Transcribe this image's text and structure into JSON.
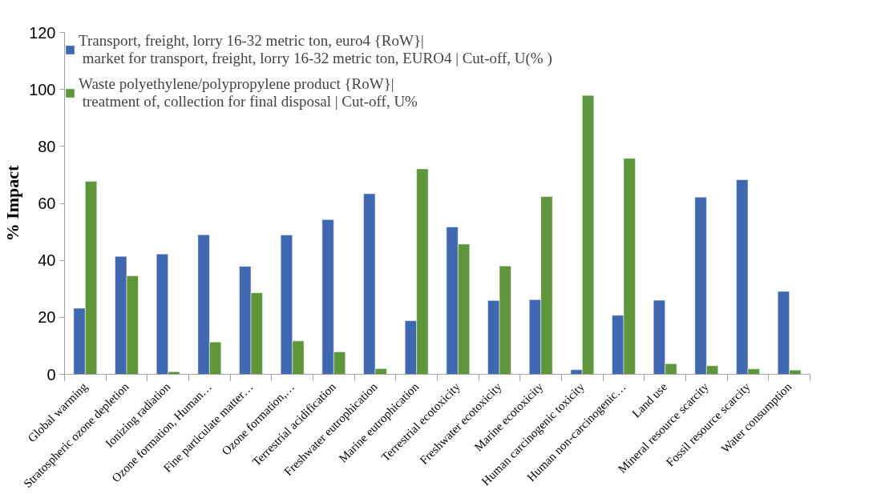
{
  "chart_data": {
    "type": "bar",
    "ylabel": "% Impact",
    "categories": [
      "Global warming",
      "Stratospheric ozone depletion",
      "Ionizing radiation",
      "Ozone formation, Human…",
      "Fine particulate matter…",
      "Ozone formation,…",
      "Terrestrial acidification",
      "Freshwater eutrophication",
      "Marine eutrophication",
      "Terrestrial ecotoxicity",
      "Freshwater ecotoxicity",
      "Marine ecotoxicity",
      "Human carcinogenic toxicity",
      "Human non-carcinogenic…",
      "Land use",
      "Mineral resource scarcity",
      "Fossil resource scarcity",
      "Water consumption"
    ],
    "series": [
      {
        "name": "Transport, freight, lorry 16-32 metric ton, euro4 {RoW}|\n market for transport, freight, lorry 16-32 metric ton, EURO4 | Cut-off, U(% )",
        "color": "#4068b0",
        "values": [
          23.2,
          41.4,
          42.2,
          49.0,
          37.9,
          48.9,
          54.3,
          63.4,
          18.8,
          51.7,
          25.9,
          26.2,
          1.6,
          20.7,
          26.0,
          62.2,
          68.3,
          29.1
        ]
      },
      {
        "name": "Waste polyethylene/polypropylene product {RoW}|\n treatment of, collection for final disposal | Cut-off, U%",
        "color": "#5f963b",
        "values": [
          67.7,
          34.6,
          0.9,
          11.3,
          28.6,
          11.7,
          7.9,
          2.0,
          72.1,
          45.7,
          38.0,
          62.4,
          97.9,
          75.8,
          3.7,
          3.0,
          1.9,
          1.5
        ]
      }
    ],
    "ylim": [
      0,
      120
    ],
    "yticks": [
      0,
      20,
      40,
      60,
      80,
      100,
      120
    ],
    "grid": false,
    "legend": "top left"
  }
}
